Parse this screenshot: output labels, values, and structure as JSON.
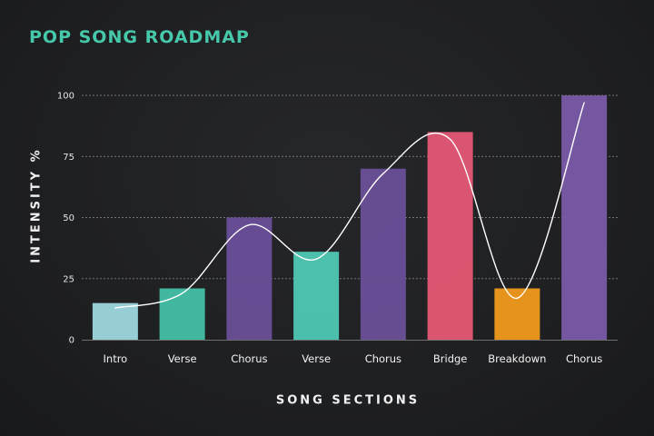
{
  "chart_data": {
    "type": "bar",
    "title": "POP SONG ROADMAP",
    "xlabel": "SONG SECTIONS",
    "ylabel": "INTENSITY %",
    "categories": [
      "Intro",
      "Verse",
      "Chorus",
      "Verse",
      "Chorus",
      "Bridge",
      "Breakdown",
      "Chorus"
    ],
    "values": [
      15,
      21,
      50,
      36,
      70,
      85,
      21,
      100
    ],
    "bar_colors": [
      "#9ed8e0",
      "#45c0a6",
      "#6a4f98",
      "#4fc8b4",
      "#6a4f98",
      "#e55875",
      "#f09a1e",
      "#7a5aa8"
    ],
    "trend_line": [
      13,
      19,
      47,
      33,
      68,
      82,
      17,
      97
    ],
    "ylim": [
      0,
      100
    ],
    "yticks": [
      0,
      25,
      50,
      75,
      100
    ],
    "grid": true,
    "colors": {
      "background": "#1f1f21",
      "title": "#46c9aa",
      "grid": "#8a8a8a",
      "line": "#ffffff",
      "text": "#f2f2f2"
    }
  }
}
